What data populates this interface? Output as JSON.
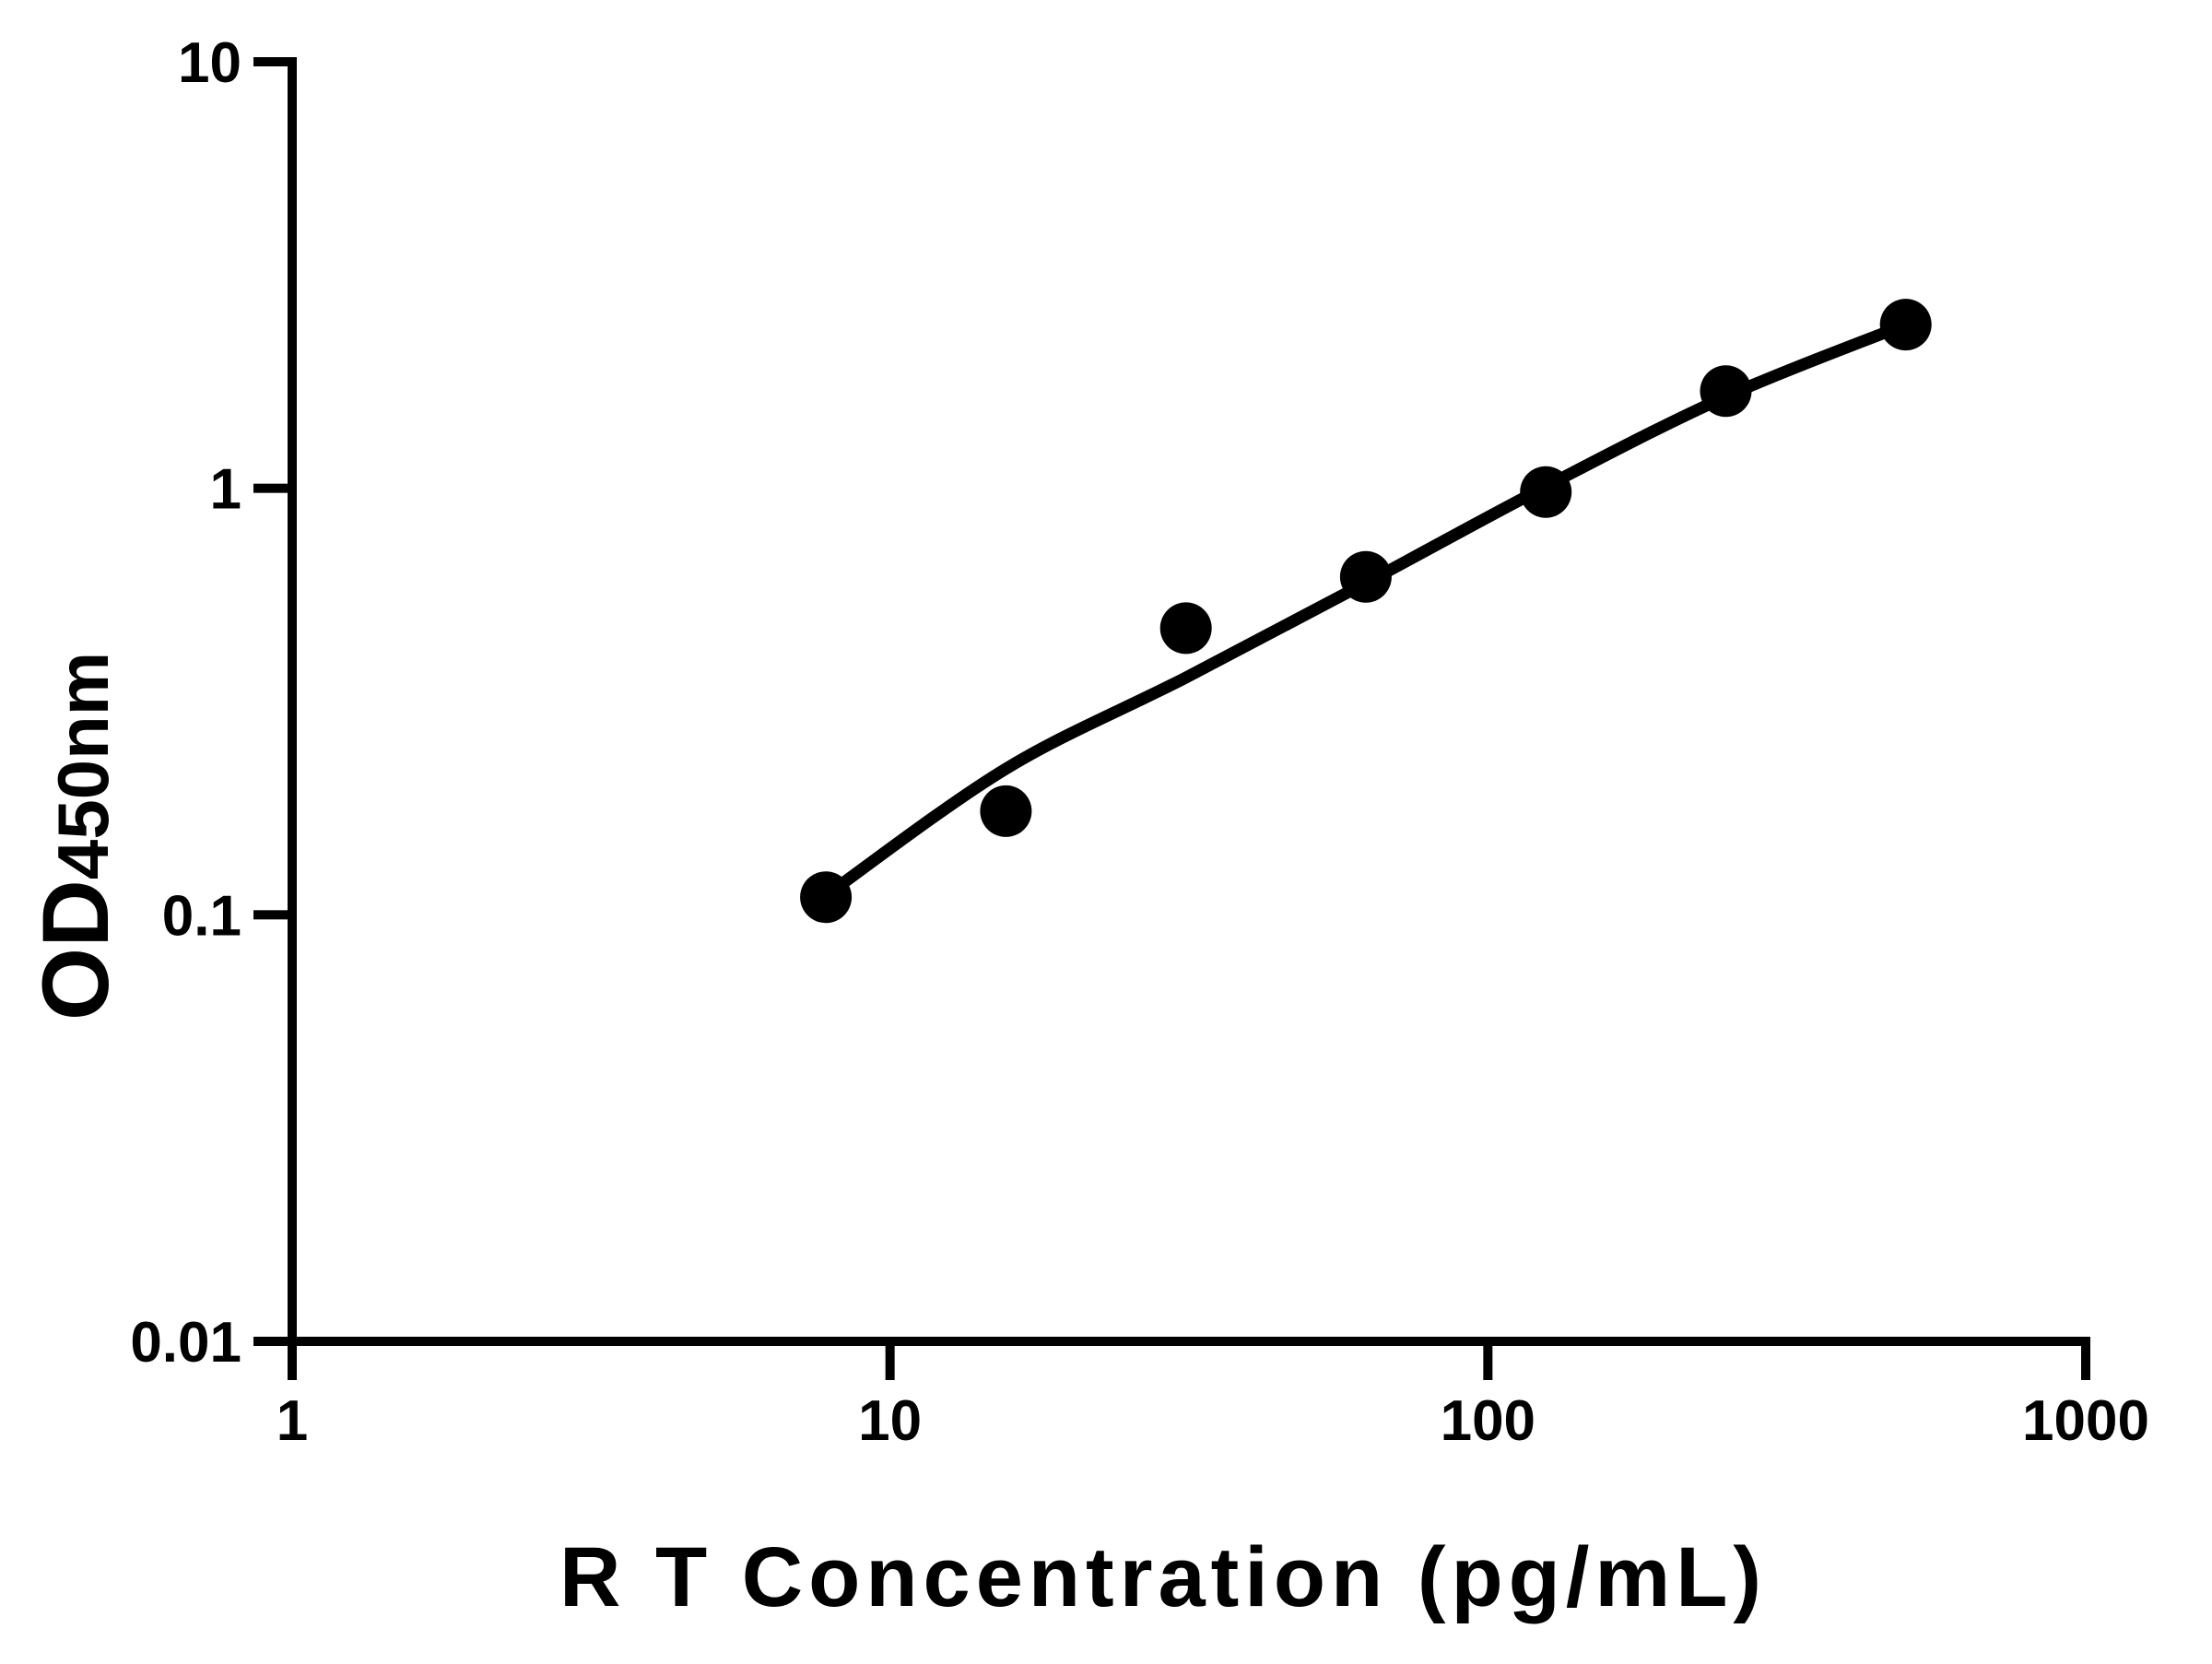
{
  "chart_data": {
    "type": "scatter",
    "title": "",
    "xlabel": "R T Concentration (pg/mL)",
    "ylabel": "OD450nm",
    "ylabel_main": "OD",
    "ylabel_sub": "450nm",
    "x_scale": "log",
    "y_scale": "log",
    "xlim": [
      1,
      1000
    ],
    "ylim": [
      0.01,
      10
    ],
    "x_ticks": [
      1,
      10,
      100,
      1000
    ],
    "x_tick_labels": [
      "1",
      "10",
      "100",
      "1000"
    ],
    "y_ticks": [
      0.01,
      0.1,
      1,
      10
    ],
    "y_tick_labels": [
      "0.01",
      "0.1",
      "1",
      "10"
    ],
    "grid": false,
    "legend": false,
    "series": [
      {
        "name": "standard-points",
        "marker": "circle",
        "color": "#000000",
        "x": [
          7.8125,
          15.625,
          31.25,
          62.5,
          125,
          250,
          500
        ],
        "y": [
          0.11,
          0.175,
          0.47,
          0.62,
          0.98,
          1.69,
          2.42
        ]
      }
    ],
    "fit_curve": {
      "name": "standard-fit-curve",
      "color": "#000000",
      "x": [
        7.8125,
        15.625,
        31.25,
        62.5,
        125,
        250,
        500
      ],
      "y": [
        0.111,
        0.22,
        0.36,
        0.6,
        1.01,
        1.64,
        2.42
      ]
    }
  },
  "colors": {
    "background": "#ffffff",
    "foreground": "#000000"
  }
}
